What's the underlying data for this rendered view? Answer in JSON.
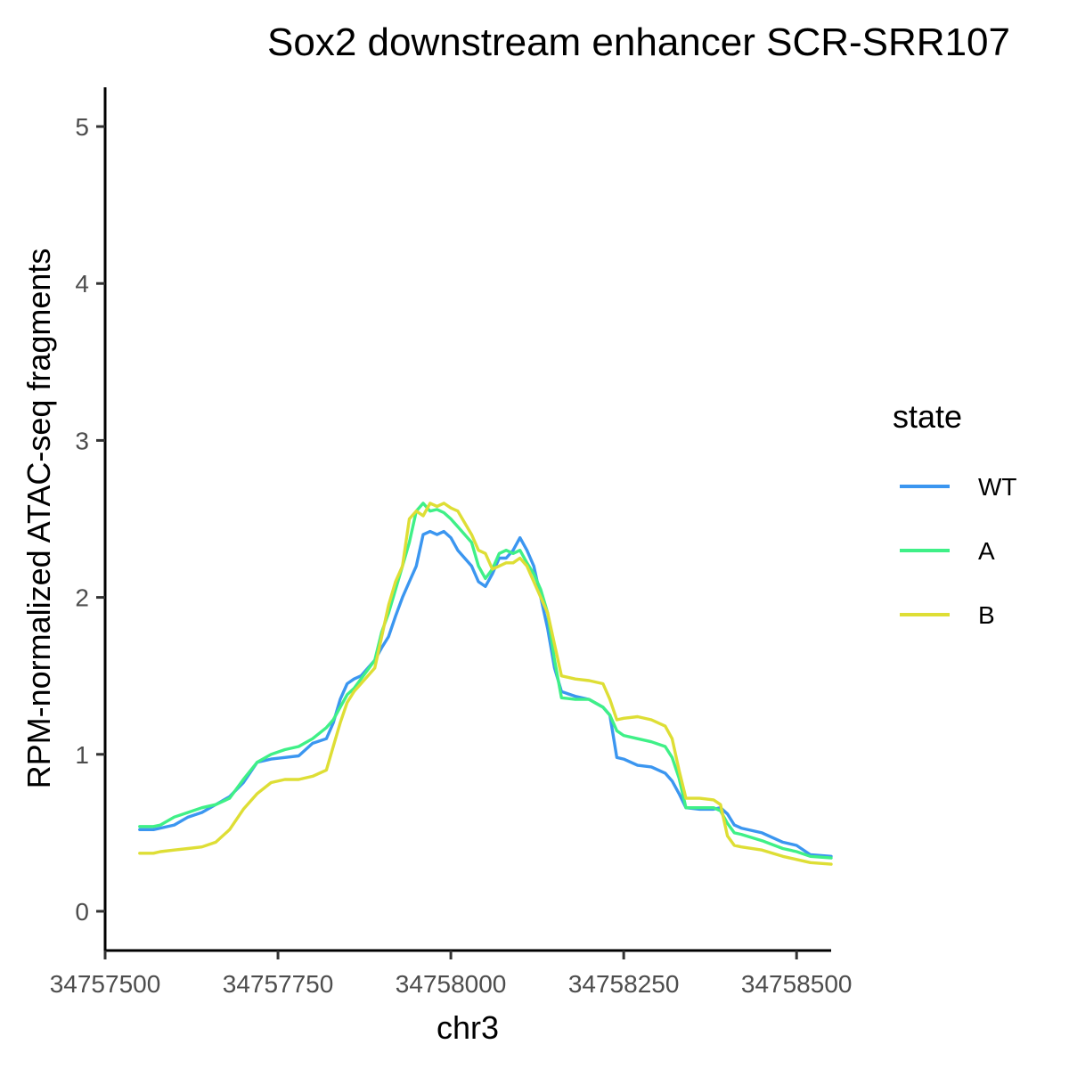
{
  "chart_data": {
    "type": "line",
    "title": "Sox2 downstream enhancer SCR-SRR107",
    "xlabel": "chr3",
    "ylabel": "RPM-normalized ATAC-seq fragments",
    "xlim": [
      34757500,
      34758550
    ],
    "ylim": [
      -0.25,
      5.25
    ],
    "x_ticks": [
      34757500,
      34757750,
      34758000,
      34758250,
      34758500
    ],
    "x_tick_labels": [
      "34757500",
      "34757750",
      "34758000",
      "34758250",
      "34758500"
    ],
    "y_ticks": [
      0,
      1,
      2,
      3,
      4,
      5
    ],
    "y_tick_labels": [
      "0",
      "1",
      "2",
      "3",
      "4",
      "5"
    ],
    "grid": false,
    "legend": {
      "title": "state",
      "position": "right"
    },
    "series": [
      {
        "name": "WT",
        "color": "#3b96f0",
        "points": [
          [
            34757550,
            0.52
          ],
          [
            34757570,
            0.52
          ],
          [
            34757580,
            0.53
          ],
          [
            34757600,
            0.55
          ],
          [
            34757620,
            0.6
          ],
          [
            34757640,
            0.63
          ],
          [
            34757660,
            0.68
          ],
          [
            34757680,
            0.73
          ],
          [
            34757700,
            0.82
          ],
          [
            34757720,
            0.95
          ],
          [
            34757740,
            0.97
          ],
          [
            34757760,
            0.98
          ],
          [
            34757780,
            0.99
          ],
          [
            34757800,
            1.07
          ],
          [
            34757820,
            1.1
          ],
          [
            34757830,
            1.2
          ],
          [
            34757840,
            1.35
          ],
          [
            34757850,
            1.45
          ],
          [
            34757860,
            1.48
          ],
          [
            34757870,
            1.5
          ],
          [
            34757890,
            1.6
          ],
          [
            34757900,
            1.68
          ],
          [
            34757910,
            1.75
          ],
          [
            34757920,
            1.88
          ],
          [
            34757930,
            2.0
          ],
          [
            34757940,
            2.1
          ],
          [
            34757950,
            2.2
          ],
          [
            34757960,
            2.4
          ],
          [
            34757970,
            2.42
          ],
          [
            34757980,
            2.4
          ],
          [
            34757990,
            2.42
          ],
          [
            34758000,
            2.38
          ],
          [
            34758010,
            2.3
          ],
          [
            34758030,
            2.2
          ],
          [
            34758040,
            2.1
          ],
          [
            34758050,
            2.07
          ],
          [
            34758060,
            2.15
          ],
          [
            34758070,
            2.25
          ],
          [
            34758080,
            2.25
          ],
          [
            34758090,
            2.3
          ],
          [
            34758100,
            2.38
          ],
          [
            34758110,
            2.3
          ],
          [
            34758120,
            2.2
          ],
          [
            34758130,
            2.0
          ],
          [
            34758140,
            1.8
          ],
          [
            34758150,
            1.55
          ],
          [
            34758160,
            1.4
          ],
          [
            34758180,
            1.37
          ],
          [
            34758200,
            1.35
          ],
          [
            34758220,
            1.3
          ],
          [
            34758230,
            1.25
          ],
          [
            34758240,
            0.98
          ],
          [
            34758250,
            0.97
          ],
          [
            34758270,
            0.93
          ],
          [
            34758290,
            0.92
          ],
          [
            34758310,
            0.88
          ],
          [
            34758320,
            0.83
          ],
          [
            34758330,
            0.75
          ],
          [
            34758340,
            0.66
          ],
          [
            34758360,
            0.65
          ],
          [
            34758380,
            0.65
          ],
          [
            34758390,
            0.66
          ],
          [
            34758400,
            0.62
          ],
          [
            34758410,
            0.55
          ],
          [
            34758420,
            0.53
          ],
          [
            34758450,
            0.5
          ],
          [
            34758480,
            0.44
          ],
          [
            34758500,
            0.42
          ],
          [
            34758520,
            0.36
          ],
          [
            34758550,
            0.35
          ]
        ]
      },
      {
        "name": "A",
        "color": "#3ff087",
        "points": [
          [
            34757550,
            0.54
          ],
          [
            34757570,
            0.54
          ],
          [
            34757580,
            0.55
          ],
          [
            34757600,
            0.6
          ],
          [
            34757620,
            0.63
          ],
          [
            34757640,
            0.66
          ],
          [
            34757660,
            0.68
          ],
          [
            34757680,
            0.72
          ],
          [
            34757700,
            0.84
          ],
          [
            34757720,
            0.95
          ],
          [
            34757740,
            1.0
          ],
          [
            34757760,
            1.03
          ],
          [
            34757780,
            1.05
          ],
          [
            34757800,
            1.1
          ],
          [
            34757820,
            1.17
          ],
          [
            34757830,
            1.22
          ],
          [
            34757840,
            1.3
          ],
          [
            34757850,
            1.38
          ],
          [
            34757860,
            1.42
          ],
          [
            34757870,
            1.48
          ],
          [
            34757890,
            1.6
          ],
          [
            34757900,
            1.78
          ],
          [
            34757910,
            1.9
          ],
          [
            34757920,
            2.05
          ],
          [
            34757930,
            2.2
          ],
          [
            34757940,
            2.35
          ],
          [
            34757950,
            2.55
          ],
          [
            34757960,
            2.6
          ],
          [
            34757970,
            2.55
          ],
          [
            34757980,
            2.56
          ],
          [
            34757990,
            2.54
          ],
          [
            34758000,
            2.5
          ],
          [
            34758010,
            2.45
          ],
          [
            34758030,
            2.35
          ],
          [
            34758040,
            2.2
          ],
          [
            34758050,
            2.12
          ],
          [
            34758060,
            2.18
          ],
          [
            34758070,
            2.28
          ],
          [
            34758080,
            2.3
          ],
          [
            34758090,
            2.28
          ],
          [
            34758100,
            2.3
          ],
          [
            34758110,
            2.22
          ],
          [
            34758120,
            2.15
          ],
          [
            34758130,
            2.05
          ],
          [
            34758140,
            1.9
          ],
          [
            34758150,
            1.6
          ],
          [
            34758160,
            1.36
          ],
          [
            34758180,
            1.35
          ],
          [
            34758200,
            1.35
          ],
          [
            34758220,
            1.3
          ],
          [
            34758230,
            1.25
          ],
          [
            34758240,
            1.15
          ],
          [
            34758250,
            1.12
          ],
          [
            34758270,
            1.1
          ],
          [
            34758290,
            1.08
          ],
          [
            34758310,
            1.05
          ],
          [
            34758320,
            0.98
          ],
          [
            34758330,
            0.85
          ],
          [
            34758340,
            0.66
          ],
          [
            34758360,
            0.66
          ],
          [
            34758380,
            0.66
          ],
          [
            34758390,
            0.64
          ],
          [
            34758400,
            0.56
          ],
          [
            34758410,
            0.5
          ],
          [
            34758420,
            0.49
          ],
          [
            34758450,
            0.45
          ],
          [
            34758480,
            0.4
          ],
          [
            34758500,
            0.38
          ],
          [
            34758520,
            0.35
          ],
          [
            34758550,
            0.34
          ]
        ]
      },
      {
        "name": "B",
        "color": "#dede35",
        "points": [
          [
            34757550,
            0.37
          ],
          [
            34757570,
            0.37
          ],
          [
            34757580,
            0.38
          ],
          [
            34757600,
            0.39
          ],
          [
            34757620,
            0.4
          ],
          [
            34757640,
            0.41
          ],
          [
            34757660,
            0.44
          ],
          [
            34757680,
            0.52
          ],
          [
            34757700,
            0.65
          ],
          [
            34757720,
            0.75
          ],
          [
            34757740,
            0.82
          ],
          [
            34757760,
            0.84
          ],
          [
            34757780,
            0.84
          ],
          [
            34757800,
            0.86
          ],
          [
            34757820,
            0.9
          ],
          [
            34757830,
            1.05
          ],
          [
            34757840,
            1.2
          ],
          [
            34757850,
            1.33
          ],
          [
            34757860,
            1.4
          ],
          [
            34757870,
            1.45
          ],
          [
            34757890,
            1.55
          ],
          [
            34757900,
            1.75
          ],
          [
            34757910,
            1.95
          ],
          [
            34757920,
            2.1
          ],
          [
            34757930,
            2.2
          ],
          [
            34757940,
            2.5
          ],
          [
            34757950,
            2.55
          ],
          [
            34757960,
            2.52
          ],
          [
            34757970,
            2.6
          ],
          [
            34757980,
            2.58
          ],
          [
            34757990,
            2.6
          ],
          [
            34758000,
            2.57
          ],
          [
            34758010,
            2.55
          ],
          [
            34758030,
            2.4
          ],
          [
            34758040,
            2.3
          ],
          [
            34758050,
            2.28
          ],
          [
            34758060,
            2.18
          ],
          [
            34758070,
            2.2
          ],
          [
            34758080,
            2.22
          ],
          [
            34758090,
            2.22
          ],
          [
            34758100,
            2.25
          ],
          [
            34758110,
            2.2
          ],
          [
            34758120,
            2.1
          ],
          [
            34758130,
            2.0
          ],
          [
            34758140,
            1.9
          ],
          [
            34758150,
            1.7
          ],
          [
            34758160,
            1.5
          ],
          [
            34758180,
            1.48
          ],
          [
            34758200,
            1.47
          ],
          [
            34758220,
            1.45
          ],
          [
            34758230,
            1.35
          ],
          [
            34758240,
            1.22
          ],
          [
            34758250,
            1.23
          ],
          [
            34758270,
            1.24
          ],
          [
            34758290,
            1.22
          ],
          [
            34758310,
            1.18
          ],
          [
            34758320,
            1.1
          ],
          [
            34758330,
            0.9
          ],
          [
            34758340,
            0.72
          ],
          [
            34758360,
            0.72
          ],
          [
            34758380,
            0.71
          ],
          [
            34758390,
            0.68
          ],
          [
            34758400,
            0.48
          ],
          [
            34758410,
            0.42
          ],
          [
            34758420,
            0.41
          ],
          [
            34758450,
            0.39
          ],
          [
            34758480,
            0.35
          ],
          [
            34758500,
            0.33
          ],
          [
            34758520,
            0.31
          ],
          [
            34758550,
            0.3
          ]
        ]
      }
    ]
  }
}
